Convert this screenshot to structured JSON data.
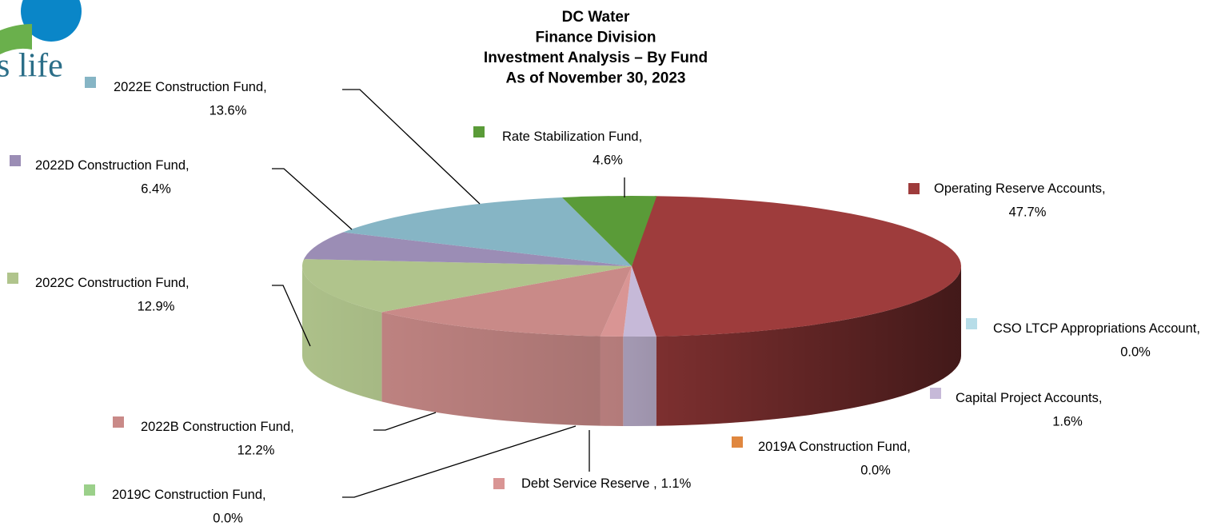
{
  "chart_data": {
    "type": "pie",
    "title": [
      "DC Water",
      "Finance Division",
      "Investment Analysis – By Fund",
      "As of November 30, 2023"
    ],
    "logo_text": "s life",
    "label_separator": ",",
    "categories": [
      "Operating Reserve Accounts",
      "CSO LTCP Appropriations Account",
      "Capital Project Accounts",
      "2019A Construction Fund",
      "Debt Service Reserve ",
      "2019C Construction Fund",
      "2022B Construction Fund",
      "2022C Construction Fund",
      "2022D Construction Fund",
      "2022E Construction Fund",
      "Rate Stabilization Fund"
    ],
    "values": [
      47.7,
      0.0,
      1.6,
      0.0,
      1.1,
      0.0,
      12.2,
      12.9,
      6.4,
      13.6,
      4.6
    ],
    "value_labels": [
      "47.7%",
      "0.0%",
      "1.6%",
      "0.0%",
      "1.1%",
      "0.0%",
      "12.2%",
      "12.9%",
      "6.4%",
      "13.6%",
      "4.6%"
    ],
    "colors": [
      "#9e3c3c",
      "#b7dde8",
      "#c6b9d8",
      "#e0873f",
      "#d99594",
      "#9bd08a",
      "#c98a88",
      "#b0c48c",
      "#9b8db5",
      "#86b5c5",
      "#5a9b38"
    ]
  }
}
